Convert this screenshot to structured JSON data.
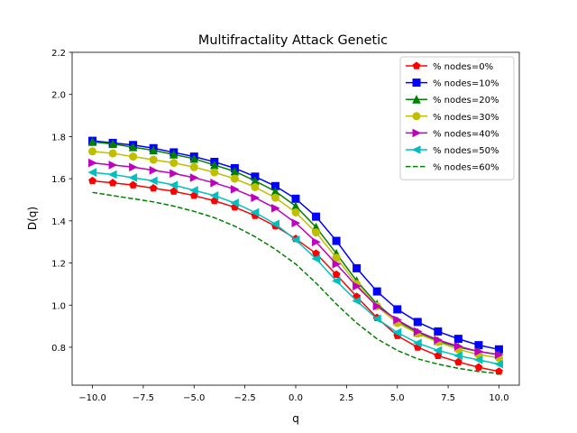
{
  "chart_data": {
    "type": "line",
    "title": "Multifractality Attack Genetic",
    "xlabel": "q",
    "ylabel": "D(q)",
    "xlim": [
      -11,
      11
    ],
    "ylim": [
      0.62,
      2.2
    ],
    "xticks": [
      -10,
      -7.5,
      -5,
      -2.5,
      0,
      2.5,
      5,
      7.5,
      10
    ],
    "xtick_labels": [
      "−10.0",
      "−7.5",
      "−5.0",
      "−2.5",
      "0.0",
      "2.5",
      "5.0",
      "7.5",
      "10.0"
    ],
    "yticks": [
      0.8,
      1.0,
      1.2,
      1.4,
      1.6,
      1.8,
      2.0,
      2.2
    ],
    "ytick_labels": [
      "0.8",
      "1.0",
      "1.2",
      "1.4",
      "1.6",
      "1.8",
      "2.0",
      "2.2"
    ],
    "grid": false,
    "legend_position": "top-right",
    "x": [
      -10,
      -9,
      -8,
      -7,
      -6,
      -5,
      -4,
      -3,
      -2,
      -1,
      0,
      1,
      2,
      3,
      4,
      5,
      6,
      7,
      8,
      9,
      10
    ],
    "series": [
      {
        "name": "% nodes=0%",
        "color": "#ff0000",
        "marker": "pentagon",
        "dashed": false,
        "values": [
          1.59,
          1.58,
          1.57,
          1.555,
          1.54,
          1.52,
          1.495,
          1.465,
          1.425,
          1.375,
          1.315,
          1.245,
          1.145,
          1.04,
          0.94,
          0.855,
          0.8,
          0.76,
          0.73,
          0.705,
          0.685
        ]
      },
      {
        "name": "% nodes=10%",
        "color": "#0000ff",
        "marker": "square",
        "dashed": false,
        "values": [
          1.78,
          1.77,
          1.76,
          1.745,
          1.725,
          1.705,
          1.68,
          1.65,
          1.61,
          1.565,
          1.505,
          1.42,
          1.305,
          1.175,
          1.065,
          0.98,
          0.92,
          0.875,
          0.84,
          0.81,
          0.79
        ]
      },
      {
        "name": "% nodes=20%",
        "color": "#008000",
        "marker": "triangle-up",
        "dashed": false,
        "values": [
          1.775,
          1.765,
          1.75,
          1.735,
          1.715,
          1.695,
          1.665,
          1.635,
          1.59,
          1.54,
          1.47,
          1.37,
          1.245,
          1.115,
          1.005,
          0.925,
          0.87,
          0.83,
          0.8,
          0.78,
          0.765
        ]
      },
      {
        "name": "% nodes=30%",
        "color": "#bfbf00",
        "marker": "circle",
        "dashed": false,
        "values": [
          1.73,
          1.72,
          1.705,
          1.69,
          1.675,
          1.655,
          1.63,
          1.6,
          1.56,
          1.51,
          1.44,
          1.345,
          1.225,
          1.1,
          0.995,
          0.915,
          0.865,
          0.825,
          0.79,
          0.765,
          0.75
        ]
      },
      {
        "name": "% nodes=40%",
        "color": "#bf00bf",
        "marker": "triangle-right",
        "dashed": false,
        "values": [
          1.675,
          1.665,
          1.655,
          1.64,
          1.625,
          1.605,
          1.58,
          1.55,
          1.51,
          1.46,
          1.39,
          1.3,
          1.195,
          1.09,
          0.995,
          0.93,
          0.875,
          0.835,
          0.805,
          0.78,
          0.765
        ]
      },
      {
        "name": "% nodes=50%",
        "color": "#00bfbf",
        "marker": "triangle-left",
        "dashed": false,
        "values": [
          1.63,
          1.62,
          1.605,
          1.59,
          1.57,
          1.545,
          1.52,
          1.485,
          1.44,
          1.385,
          1.31,
          1.22,
          1.115,
          1.02,
          0.935,
          0.87,
          0.82,
          0.785,
          0.76,
          0.74,
          0.72
        ]
      },
      {
        "name": "% nodes=60%",
        "color": "#008000",
        "marker": "none",
        "dashed": true,
        "values": [
          1.535,
          1.52,
          1.505,
          1.49,
          1.47,
          1.445,
          1.415,
          1.375,
          1.325,
          1.265,
          1.195,
          1.105,
          1.005,
          0.915,
          0.84,
          0.785,
          0.745,
          0.72,
          0.7,
          0.685,
          0.675
        ]
      }
    ]
  }
}
